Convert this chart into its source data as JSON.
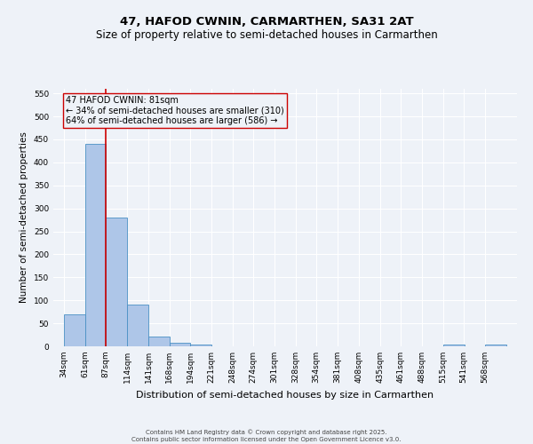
{
  "title": "47, HAFOD CWNIN, CARMARTHEN, SA31 2AT",
  "subtitle": "Size of property relative to semi-detached houses in Carmarthen",
  "xlabel": "Distribution of semi-detached houses by size in Carmarthen",
  "ylabel": "Number of semi-detached properties",
  "footer_line1": "Contains HM Land Registry data © Crown copyright and database right 2025.",
  "footer_line2": "Contains public sector information licensed under the Open Government Licence v3.0.",
  "bins": [
    34,
    61,
    87,
    114,
    141,
    168,
    194,
    221,
    248,
    274,
    301,
    328,
    354,
    381,
    408,
    435,
    461,
    488,
    515,
    541,
    568
  ],
  "bin_labels": [
    "34sqm",
    "61sqm",
    "87sqm",
    "114sqm",
    "141sqm",
    "168sqm",
    "194sqm",
    "221sqm",
    "248sqm",
    "274sqm",
    "301sqm",
    "328sqm",
    "354sqm",
    "381sqm",
    "408sqm",
    "435sqm",
    "461sqm",
    "488sqm",
    "515sqm",
    "541sqm",
    "568sqm"
  ],
  "counts": [
    70,
    440,
    280,
    90,
    22,
    8,
    4,
    0,
    0,
    0,
    0,
    0,
    0,
    0,
    0,
    0,
    0,
    0,
    3,
    0,
    4
  ],
  "bar_color": "#aec6e8",
  "bar_edge_color": "#4a90c4",
  "vline_x": 87,
  "vline_color": "#cc0000",
  "annotation_text": "47 HAFOD CWNIN: 81sqm\n← 34% of semi-detached houses are smaller (310)\n64% of semi-detached houses are larger (586) →",
  "annotation_box_color": "#cc0000",
  "ylim": [
    0,
    560
  ],
  "yticks": [
    0,
    50,
    100,
    150,
    200,
    250,
    300,
    350,
    400,
    450,
    500,
    550
  ],
  "bg_color": "#eef2f8",
  "grid_color": "#ffffff",
  "title_fontsize": 9.5,
  "subtitle_fontsize": 8.5,
  "ylabel_fontsize": 7.5,
  "xlabel_fontsize": 8,
  "tick_fontsize": 6.5,
  "annot_fontsize": 7,
  "footer_fontsize": 5
}
